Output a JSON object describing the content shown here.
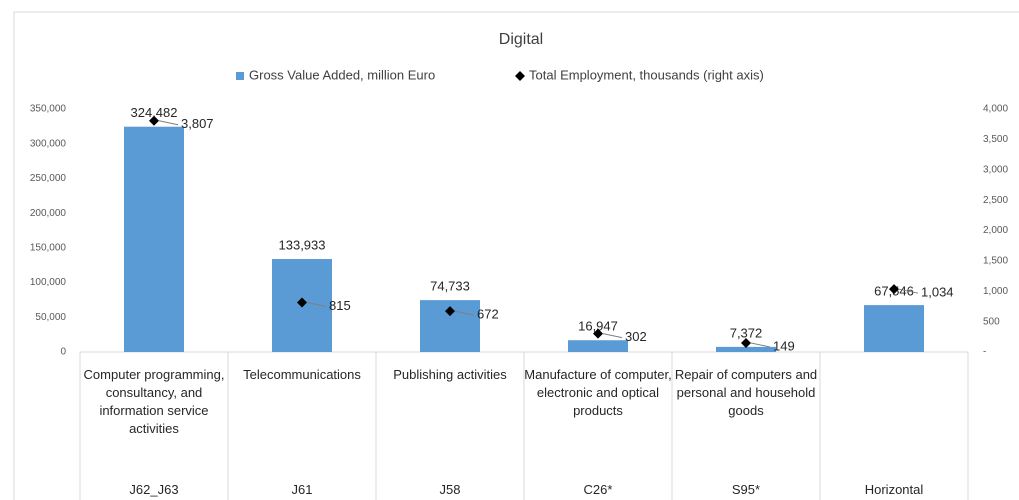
{
  "chart_data": {
    "type": "bar",
    "title": "Digital",
    "categories": [
      "J62_J63",
      "J61",
      "J58",
      "C26*",
      "S95*",
      "Horizontal"
    ],
    "category_descriptions": [
      "Computer programming, consultancy, and information service activities",
      "Telecommunications",
      "Publishing activities",
      "Manufacture of computer, electronic and optical products",
      "Repair of computers and personal and household goods",
      null
    ],
    "series": [
      {
        "name": "Gross Value Added, million Euro",
        "type": "bar",
        "color": "#5b9bd5",
        "values": [
          324482,
          133933,
          74733,
          16947,
          7372,
          67546
        ],
        "value_labels": [
          "324,482",
          "133,933",
          "74,733",
          "16,947",
          "7,372",
          "67,546"
        ]
      },
      {
        "name": "Total Employment, thousands (right axis)",
        "type": "scatter",
        "axis": "y2",
        "color": "#000000",
        "values": [
          3807,
          815,
          672,
          302,
          149,
          1034
        ],
        "value_labels": [
          "3,807",
          "815",
          "672",
          "302",
          "149",
          "1,034"
        ]
      }
    ],
    "ylim": [
      0,
      350000
    ],
    "yticks": [
      0,
      {
        "value": 50000,
        "label": "50,000"
      },
      {
        "value": 100000,
        "label": "100,000"
      },
      {
        "value": 150000,
        "label": "150,000"
      },
      {
        "value": 200000,
        "label": "200,000"
      },
      {
        "value": 250000,
        "label": "250,000"
      },
      {
        "value": 300000,
        "label": "300,000"
      },
      {
        "value": 350000,
        "label": "350,000"
      }
    ],
    "y2lim": [
      0,
      4000
    ],
    "y2ticks": [
      {
        "value": 0,
        "label": "-"
      },
      500,
      {
        "value": 1000,
        "label": "1,000"
      },
      {
        "value": 1500,
        "label": "1,500"
      },
      {
        "value": 2000,
        "label": "2,000"
      },
      {
        "value": 2500,
        "label": "2,500"
      },
      {
        "value": 3000,
        "label": "3,000"
      },
      {
        "value": 3500,
        "label": "3,500"
      },
      {
        "value": 4000,
        "label": "4,000"
      }
    ],
    "legend": "top",
    "grid": false
  }
}
